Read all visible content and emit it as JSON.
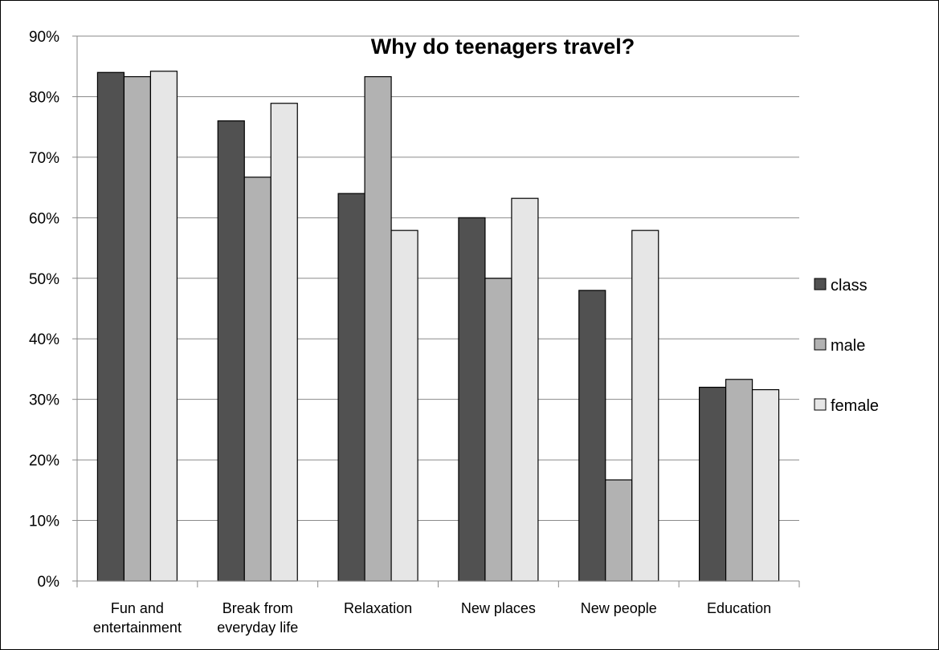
{
  "chart_data": {
    "type": "bar",
    "title": "Why do teenagers travel?",
    "xlabel": "",
    "ylabel": "",
    "categories": [
      [
        "Fun and",
        "entertainment"
      ],
      [
        "Break from",
        "everyday life"
      ],
      [
        "Relaxation"
      ],
      [
        "New places"
      ],
      [
        "New people"
      ],
      [
        "Education"
      ]
    ],
    "series": [
      {
        "name": "class",
        "color": "#515151",
        "values": [
          84,
          76,
          64,
          60,
          48,
          32
        ]
      },
      {
        "name": "male",
        "color": "#b2b2b2",
        "values": [
          83.3,
          66.7,
          83.3,
          50,
          16.7,
          33.3
        ]
      },
      {
        "name": "female",
        "color": "#e6e6e6",
        "values": [
          84.2,
          78.9,
          57.9,
          63.2,
          57.9,
          31.6
        ]
      }
    ],
    "ylim": [
      0,
      90
    ],
    "y_ticks": [
      "0%",
      "10%",
      "20%",
      "30%",
      "40%",
      "50%",
      "60%",
      "70%",
      "80%",
      "90%"
    ],
    "grid": true,
    "legend_position": "right"
  }
}
